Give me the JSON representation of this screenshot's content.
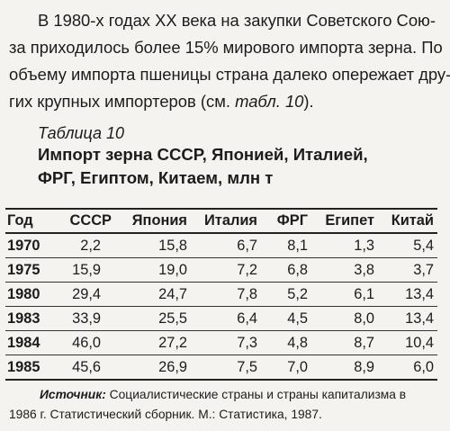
{
  "paragraph": {
    "line1": "В 1980-х годах XX века на закупки Советского Сою-",
    "line2": "за приходилось более 15% мирового импорта зерна. По",
    "line3": "объему импорта пшеницы страна далеко опережает дру-",
    "line4_start": "гих крупных импортеров (см. ",
    "line4_ref": "табл. 10",
    "line4_end": ")."
  },
  "table_caption": {
    "number": "Таблица 10",
    "title_line1": "Импорт зерна СССР, Японией, Италией,",
    "title_line2": "ФРГ, Египтом, Китаем, млн т"
  },
  "table": {
    "headers": [
      "Год",
      "СССР",
      "Япония",
      "Италия",
      "ФРГ",
      "Египет",
      "Китай"
    ],
    "rows": [
      [
        "1970",
        "2,2",
        "15,8",
        "6,7",
        "8,1",
        "1,3",
        "5,4"
      ],
      [
        "1975",
        "15,9",
        "19,0",
        "7,2",
        "6,8",
        "3,8",
        "3,7"
      ],
      [
        "1980",
        "29,4",
        "24,7",
        "7,8",
        "5,2",
        "6,1",
        "13,4"
      ],
      [
        "1983",
        "33,9",
        "25,5",
        "6,4",
        "4,5",
        "8,0",
        "13,4"
      ],
      [
        "1984",
        "46,0",
        "27,2",
        "7,3",
        "4,8",
        "8,7",
        "10,4"
      ],
      [
        "1985",
        "45,6",
        "26,9",
        "7,5",
        "7,0",
        "8,9",
        "6,0"
      ]
    ]
  },
  "source": {
    "label": "Источник:",
    "line1": " Социалистические страны и страны капитализма в",
    "line2": "1986 г. Статистический сборник. М.: Статистика, 1987."
  }
}
